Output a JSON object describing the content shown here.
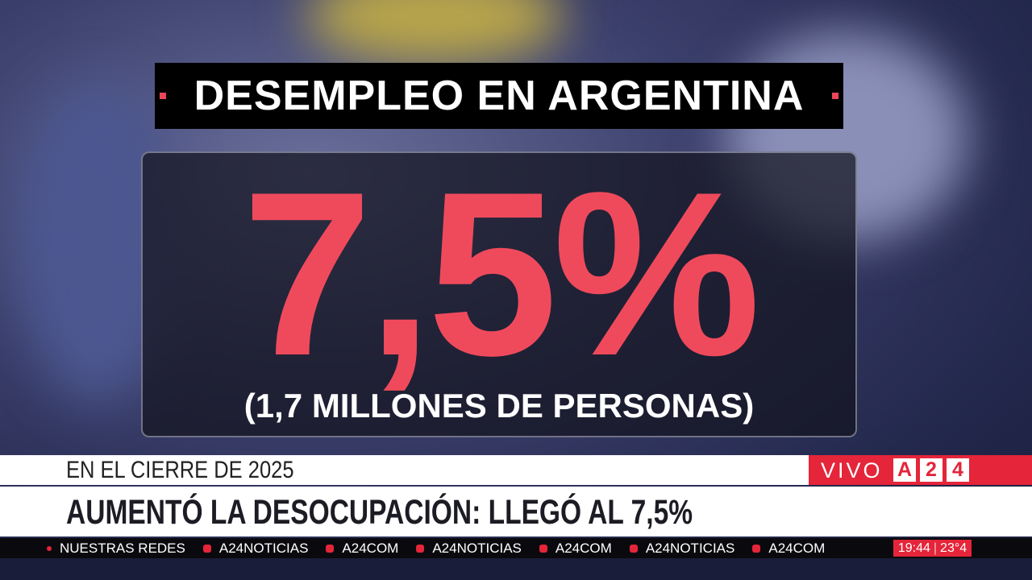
{
  "graphic": {
    "title": "DESEMPLEO EN ARGENTINA",
    "figure": "7,5%",
    "subtitle": "(1,7 MILLONES DE PERSONAS)"
  },
  "lower_third": {
    "kicker": "EN EL CIERRE DE 2025",
    "headline": "AUMENTÓ LA DESOCUPACIÓN: LLEGÓ AL 7,5%",
    "live": "VIVO",
    "logo": [
      "A",
      "2",
      "4"
    ]
  },
  "ticker": {
    "items": [
      "NUESTRAS REDES",
      "A24NOTICIAS",
      "A24COM",
      "A24NOTICIAS",
      "A24COM",
      "A24NOTICIAS",
      "A24COM"
    ],
    "time": "19:44",
    "temperature": "23°4"
  }
}
